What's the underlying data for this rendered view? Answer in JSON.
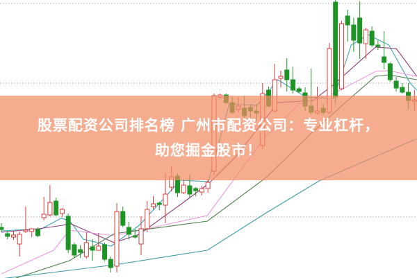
{
  "banner": {
    "line1": "股票配资公司排名榜 广州市配资公司：专业杠杆，",
    "line2": "助您掘金股市！"
  },
  "chart_data": {
    "type": "candlestick",
    "title": "",
    "xlabel": "",
    "ylabel": "",
    "note_units": "relative price (no axis printed)",
    "grid": true,
    "gridlines": [
      395,
      280,
      87
    ],
    "ylim": [
      0,
      400
    ],
    "colors": {
      "up": "#d83a3a",
      "down": "#1e9426",
      "banner": "#f5a588"
    },
    "candles": [
      [
        72,
        69,
        78,
        65
      ],
      [
        63,
        59,
        67,
        55
      ],
      [
        58,
        61,
        67,
        54
      ],
      [
        48,
        62,
        66,
        30
      ],
      [
        66,
        68,
        102,
        64
      ],
      [
        66,
        70,
        70,
        58
      ],
      [
        69,
        60,
        72,
        58
      ],
      [
        86,
        91,
        116,
        82
      ],
      [
        90,
        108,
        133,
        88
      ],
      [
        110,
        90,
        115,
        88
      ],
      [
        92,
        98,
        100,
        87
      ],
      [
        88,
        40,
        92,
        35
      ],
      [
        47,
        32,
        50,
        28
      ],
      [
        40,
        36,
        46,
        28
      ],
      [
        30,
        50,
        65,
        27
      ],
      [
        44,
        39,
        55,
        24
      ],
      [
        39,
        45,
        64,
        38
      ],
      [
        47,
        26,
        50,
        23
      ],
      [
        26,
        14,
        30,
        7
      ],
      [
        16,
        95,
        107,
        7
      ],
      [
        95,
        75,
        102,
        72
      ],
      [
        72,
        62,
        80,
        55
      ],
      [
        60,
        58,
        70,
        56
      ],
      [
        48,
        70,
        88,
        32
      ],
      [
        70,
        98,
        110,
        65
      ],
      [
        102,
        106,
        117,
        98
      ],
      [
        107,
        105,
        109,
        97
      ],
      [
        104,
        120,
        150,
        78
      ],
      [
        130,
        145,
        160,
        124
      ],
      [
        146,
        122,
        150,
        116
      ],
      [
        122,
        133,
        142,
        120
      ],
      [
        132,
        120,
        148,
        115
      ],
      [
        128,
        125,
        130,
        117
      ],
      [
        123,
        128,
        132,
        118
      ],
      [
        128,
        137,
        142,
        122
      ],
      [
        153,
        262,
        265,
        147
      ],
      [
        260,
        263,
        265,
        258
      ],
      [
        263,
        252,
        265,
        250
      ],
      [
        252,
        238,
        260,
        235
      ],
      [
        242,
        247,
        260,
        238
      ],
      [
        244,
        233,
        262,
        228
      ],
      [
        245,
        240,
        250,
        230
      ],
      [
        240,
        237,
        250,
        225
      ],
      [
        190,
        265,
        280,
        185
      ],
      [
        270,
        247,
        275,
        245
      ],
      [
        240,
        285,
        308,
        238
      ],
      [
        287,
        290,
        298,
        274
      ],
      [
        299,
        285,
        316,
        268
      ],
      [
        285,
        270,
        304,
        265
      ],
      [
        272,
        268,
        275,
        266
      ],
      [
        266,
        247,
        274,
        240
      ],
      [
        247,
        238,
        301,
        235
      ],
      [
        237,
        240,
        275,
        235
      ],
      [
        244,
        238,
        250,
        234
      ],
      [
        238,
        330,
        338,
        235
      ],
      [
        397,
        260,
        400,
        250
      ],
      [
        272,
        366,
        370,
        270
      ],
      [
        377,
        364,
        386,
        340
      ],
      [
        364,
        342,
        374,
        325
      ],
      [
        374,
        338,
        398,
        315
      ],
      [
        337,
        357,
        360,
        315
      ],
      [
        355,
        335,
        362,
        332
      ],
      [
        335,
        333,
        342,
        328
      ],
      [
        318,
        310,
        355,
        300
      ],
      [
        308,
        285,
        310,
        282
      ],
      [
        283,
        273,
        289,
        268
      ],
      [
        274,
        267,
        280,
        265
      ],
      [
        267,
        255,
        280,
        242
      ],
      [
        254,
        256,
        270,
        240
      ]
    ],
    "moving_averages": [
      {
        "color": "#3fa3b5",
        "points": [
          [
            0,
            67
          ],
          [
            6.6,
            70
          ],
          [
            9.8,
            85
          ],
          [
            11.2,
            82
          ],
          [
            13.5,
            55
          ],
          [
            18.1,
            45
          ],
          [
            22.7,
            75
          ],
          [
            29.5,
            140
          ],
          [
            34.1,
            138
          ],
          [
            37.5,
            250
          ],
          [
            42.1,
            248
          ],
          [
            45.5,
            285
          ],
          [
            50.1,
            260
          ],
          [
            54.7,
            258
          ],
          [
            57.6,
            335
          ],
          [
            60.4,
            350
          ],
          [
            63.8,
            335
          ],
          [
            67.3,
            280
          ],
          [
            68.4,
            270
          ]
        ]
      },
      {
        "color": "#8a3d7c",
        "points": [
          [
            0,
            65
          ],
          [
            6.1,
            70
          ],
          [
            10.1,
            75
          ],
          [
            11.2,
            78
          ],
          [
            14.6,
            65
          ],
          [
            18.6,
            50
          ],
          [
            22.7,
            62
          ],
          [
            29.5,
            105
          ],
          [
            34.1,
            135
          ],
          [
            38.7,
            175
          ],
          [
            45.5,
            252
          ],
          [
            51.3,
            255
          ],
          [
            54.7,
            278
          ],
          [
            61.6,
            332
          ],
          [
            65,
            330
          ],
          [
            68.4,
            290
          ]
        ]
      },
      {
        "color": "#e99ae0",
        "points": [
          [
            0,
            5
          ],
          [
            8.6,
            39
          ],
          [
            11.2,
            68
          ],
          [
            18.6,
            60
          ],
          [
            33.9,
            89
          ],
          [
            43.2,
            200
          ],
          [
            49,
            250
          ],
          [
            54.7,
            265
          ],
          [
            61.6,
            297
          ],
          [
            63.8,
            298
          ],
          [
            68.4,
            290
          ]
        ]
      },
      {
        "color": "#4d7f4a",
        "points": [
          [
            0,
            -8
          ],
          [
            11.2,
            24
          ],
          [
            18.6,
            63
          ],
          [
            33.9,
            81
          ],
          [
            43.6,
            144
          ],
          [
            51.3,
            210
          ],
          [
            57,
            255
          ],
          [
            61.6,
            290
          ],
          [
            63.8,
            292
          ],
          [
            68.4,
            285
          ]
        ]
      },
      {
        "color": "#3f9aa5",
        "points": [
          [
            0,
            -2
          ],
          [
            18.6,
            18
          ],
          [
            33.9,
            39
          ],
          [
            43.6,
            93
          ],
          [
            52.3,
            139
          ],
          [
            68.4,
            200
          ]
        ]
      }
    ]
  }
}
